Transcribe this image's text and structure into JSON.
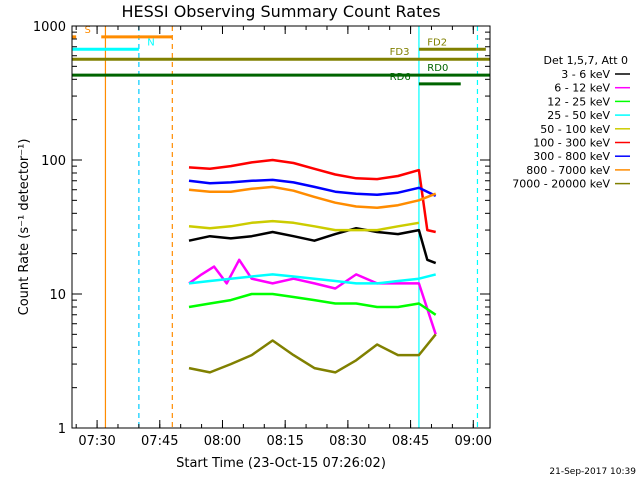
{
  "chart_data": {
    "type": "line",
    "title": "HESSI Observing Summary Count Rates",
    "xlabel": "Start Time (23-Oct-15 07:26:02)",
    "ylabel": "Count Rate (s⁻¹ detector⁻¹)",
    "y_scale": "log",
    "ylim": [
      1,
      1000
    ],
    "xlim": [
      "07:24:00",
      "09:04:00"
    ],
    "x_ticks": [
      "07:30",
      "07:45",
      "08:00",
      "08:15",
      "08:30",
      "08:45",
      "09:00"
    ],
    "y_ticks": [
      "1",
      "10",
      "100",
      "1000"
    ],
    "grid": false,
    "legend_title": "Det 1,5,7, Att 0",
    "legend_placement": "right",
    "series": [
      {
        "name": "3 - 6 keV",
        "color": "#000000",
        "x": [
          "07:52",
          "07:57",
          "08:02",
          "08:07",
          "08:12",
          "08:17",
          "08:22",
          "08:27",
          "08:32",
          "08:37",
          "08:42",
          "08:47",
          "08:49",
          "08:51"
        ],
        "y": [
          25,
          27,
          26,
          27,
          29,
          27,
          25,
          28,
          31,
          29,
          28,
          30,
          18,
          17
        ]
      },
      {
        "name": "6 - 12 keV",
        "color": "#ff00ff",
        "x": [
          "07:52",
          "07:55",
          "07:58",
          "08:01",
          "08:04",
          "08:07",
          "08:12",
          "08:17",
          "08:22",
          "08:27",
          "08:32",
          "08:37",
          "08:42",
          "08:47",
          "08:51"
        ],
        "y": [
          12,
          14,
          16,
          12,
          18,
          13,
          12,
          13,
          12,
          11,
          14,
          12,
          12,
          12,
          5
        ]
      },
      {
        "name": "12 - 25 keV",
        "color": "#00ff00",
        "x": [
          "07:52",
          "07:57",
          "08:02",
          "08:07",
          "08:12",
          "08:17",
          "08:22",
          "08:27",
          "08:32",
          "08:37",
          "08:42",
          "08:47",
          "08:51"
        ],
        "y": [
          8,
          8.5,
          9,
          10,
          10,
          9.5,
          9,
          8.5,
          8.5,
          8,
          8,
          8.5,
          7
        ]
      },
      {
        "name": "25 - 50 keV",
        "color": "#00ffff",
        "x": [
          "07:52",
          "07:57",
          "08:02",
          "08:07",
          "08:12",
          "08:17",
          "08:22",
          "08:27",
          "08:32",
          "08:37",
          "08:42",
          "08:47",
          "08:51"
        ],
        "y": [
          12,
          12.5,
          13,
          13.5,
          14,
          13.5,
          13,
          12.5,
          12,
          12,
          12.5,
          13,
          14
        ]
      },
      {
        "name": "50 - 100 keV",
        "color": "#cccc00",
        "x": [
          "07:52",
          "07:57",
          "08:02",
          "08:07",
          "08:12",
          "08:17",
          "08:22",
          "08:27",
          "08:32",
          "08:37",
          "08:42",
          "08:47"
        ],
        "y": [
          32,
          31,
          32,
          34,
          35,
          34,
          32,
          30,
          30,
          30,
          32,
          34
        ]
      },
      {
        "name": "100 - 300 keV",
        "color": "#ff0000",
        "x": [
          "07:52",
          "07:57",
          "08:02",
          "08:07",
          "08:12",
          "08:17",
          "08:22",
          "08:27",
          "08:32",
          "08:37",
          "08:42",
          "08:47",
          "08:49",
          "08:51"
        ],
        "y": [
          88,
          86,
          90,
          96,
          100,
          95,
          86,
          78,
          73,
          72,
          76,
          84,
          30,
          29
        ]
      },
      {
        "name": "300 - 800 keV",
        "color": "#0000ff",
        "x": [
          "07:52",
          "07:57",
          "08:02",
          "08:07",
          "08:12",
          "08:17",
          "08:22",
          "08:27",
          "08:32",
          "08:37",
          "08:42",
          "08:47",
          "08:51"
        ],
        "y": [
          70,
          67,
          68,
          70,
          71,
          68,
          63,
          58,
          56,
          55,
          57,
          62,
          54
        ]
      },
      {
        "name": "800 - 7000 keV",
        "color": "#ff8c00",
        "x": [
          "07:52",
          "07:57",
          "08:02",
          "08:07",
          "08:12",
          "08:17",
          "08:22",
          "08:27",
          "08:32",
          "08:37",
          "08:42",
          "08:47",
          "08:51"
        ],
        "y": [
          60,
          58,
          58,
          61,
          63,
          59,
          53,
          48,
          45,
          44,
          46,
          50,
          56
        ]
      },
      {
        "name": "7000 - 20000 keV",
        "color": "#808000",
        "x": [
          "07:52",
          "07:57",
          "08:02",
          "08:07",
          "08:12",
          "08:17",
          "08:22",
          "08:27",
          "08:32",
          "08:37",
          "08:42",
          "08:47",
          "08:51"
        ],
        "y": [
          2.8,
          2.6,
          3,
          3.5,
          4.5,
          3.5,
          2.8,
          2.6,
          3.2,
          4.2,
          3.5,
          3.5,
          5
        ]
      }
    ],
    "vertical_markers": [
      {
        "x": "07:32",
        "color": "#ff8c00",
        "style": "solid"
      },
      {
        "x": "07:40",
        "color": "#00ccff",
        "style": "dashed"
      },
      {
        "x": "07:48",
        "color": "#ff8c00",
        "style": "dashed"
      },
      {
        "x": "08:47",
        "color": "#00ffff",
        "style": "solid"
      },
      {
        "x": "09:01",
        "color": "#00ffff",
        "style": "dashed"
      }
    ],
    "flag_bars": [
      {
        "label": "S",
        "color": "#ff8c00",
        "segments": [
          [
            "07:24",
            "07:25"
          ],
          [
            "07:31",
            "07:48"
          ]
        ],
        "y": 830,
        "label_x": "07:27"
      },
      {
        "label": "N",
        "color": "#00ffff",
        "segments": [
          [
            "07:24",
            "07:40"
          ]
        ],
        "y": 670,
        "label_x": "07:42"
      },
      {
        "label": "FD2",
        "color": "#808000",
        "segments": [
          [
            "08:47",
            "09:03"
          ]
        ],
        "y": 670,
        "label_x": "08:49"
      },
      {
        "label": "FD3",
        "color": "#808000",
        "segments": [
          [
            "07:24",
            "09:04"
          ]
        ],
        "y": 565,
        "label_x": "08:40"
      },
      {
        "label": "RD0",
        "color": "#006400",
        "segments": [
          [
            "07:24",
            "09:04"
          ]
        ],
        "y": 430,
        "label_x": "08:49"
      },
      {
        "label": "RD6",
        "color": "#006400",
        "segments": [
          [
            "08:47",
            "08:57"
          ]
        ],
        "y": 370,
        "label_x": "08:40"
      }
    ]
  },
  "timestamp": "21-Sep-2017 10:39"
}
